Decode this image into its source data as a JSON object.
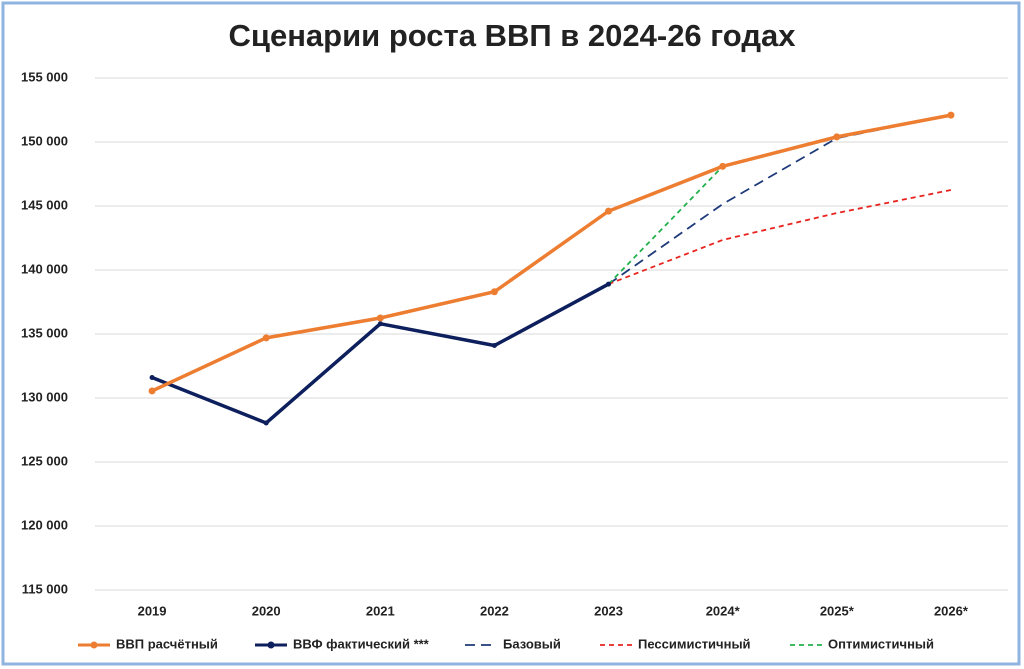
{
  "chart_data": {
    "type": "line",
    "title": "Сценарии роста ВВП в 2024-26 годах",
    "categories": [
      "2019",
      "2020",
      "2021",
      "2022",
      "2023",
      "2024*",
      "2025*",
      "2026*"
    ],
    "series": [
      {
        "name": "ВВП расчётный",
        "color": "#ed7d31",
        "style": "solid",
        "marker": true,
        "values": [
          130550,
          134700,
          136250,
          138300,
          144600,
          148100,
          150400,
          152100
        ]
      },
      {
        "name": "ВВФ фактический ***",
        "color": "#0d1f5c",
        "style": "solid",
        "marker": true,
        "values": [
          131600,
          128050,
          135800,
          134100,
          138900,
          null,
          null,
          null
        ]
      },
      {
        "name": "Базовый",
        "color": "#1f3a7a",
        "style": "dashed",
        "marker": false,
        "values": [
          null,
          null,
          null,
          null,
          138900,
          145150,
          150300,
          152100
        ]
      },
      {
        "name": "Пессимистичный",
        "color": "#e8231e",
        "style": "dashed",
        "marker": false,
        "values": [
          null,
          null,
          null,
          null,
          138900,
          142350,
          144450,
          146250
        ]
      },
      {
        "name": "Оптимистичный",
        "color": "#22b14c",
        "style": "dashed",
        "marker": false,
        "values": [
          null,
          null,
          null,
          null,
          138900,
          148100,
          150400,
          152100
        ]
      }
    ],
    "ylim": [
      115000,
      155000
    ],
    "yticks": [
      {
        "value": 115000,
        "label": "115 000"
      },
      {
        "value": 120000,
        "label": "120 000"
      },
      {
        "value": 125000,
        "label": "125 000"
      },
      {
        "value": 130000,
        "label": "130 000"
      },
      {
        "value": 135000,
        "label": "135 000"
      },
      {
        "value": 140000,
        "label": "140 000"
      },
      {
        "value": 145000,
        "label": "145 000"
      },
      {
        "value": 150000,
        "label": "150 000"
      },
      {
        "value": 155000,
        "label": "155 000"
      }
    ],
    "grid": true,
    "legend": "bottom"
  }
}
